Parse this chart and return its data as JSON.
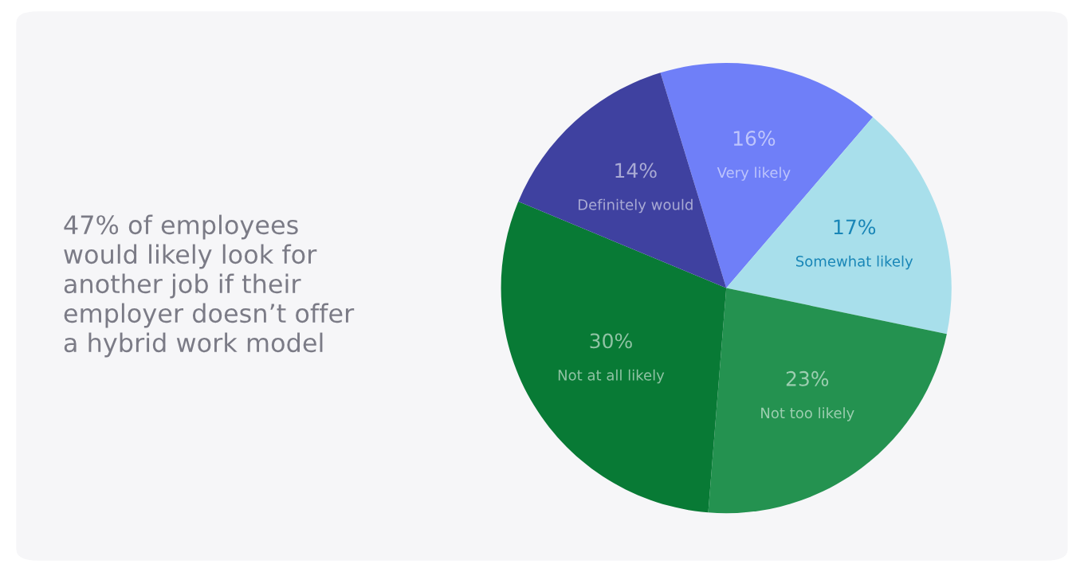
{
  "chart_data": {
    "type": "pie",
    "title": "47% of employees\nwould likely look for\nanother job if their\nemployer doesn’t offer\na hybrid work model",
    "categories": [
      "Very likely",
      "Somewhat likely",
      "Not too likely",
      "Not at all likely",
      "Definitely would"
    ],
    "values": [
      16,
      17,
      23,
      30,
      14
    ],
    "value_labels": [
      "16%",
      "17%",
      "23%",
      "30%",
      "14%"
    ],
    "colors": [
      "#6f7ff8",
      "#a8dfeb",
      "#249250",
      "#087a35",
      "#3f41a0"
    ]
  }
}
